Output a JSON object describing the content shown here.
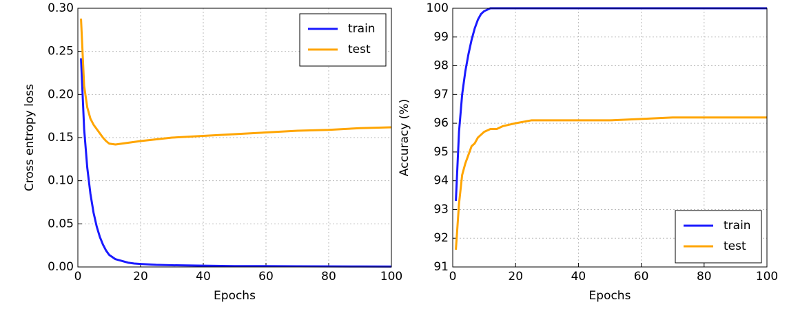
{
  "chart_data": [
    {
      "type": "line",
      "xlabel": "Epochs",
      "ylabel": "Cross entropy loss",
      "x": [
        1,
        2,
        3,
        4,
        5,
        6,
        7,
        8,
        9,
        10,
        12,
        14,
        16,
        18,
        20,
        25,
        30,
        40,
        50,
        60,
        70,
        80,
        90,
        100
      ],
      "series": [
        {
          "name": "train",
          "color": "#1a1aff",
          "values": [
            0.242,
            0.16,
            0.115,
            0.085,
            0.063,
            0.047,
            0.035,
            0.026,
            0.019,
            0.014,
            0.009,
            0.007,
            0.005,
            0.004,
            0.0035,
            0.0025,
            0.002,
            0.0015,
            0.001,
            0.001,
            0.0008,
            0.0007,
            0.0006,
            0.0005
          ]
        },
        {
          "name": "test",
          "color": "#ffa500",
          "values": [
            0.288,
            0.21,
            0.185,
            0.172,
            0.165,
            0.16,
            0.155,
            0.15,
            0.146,
            0.143,
            0.142,
            0.143,
            0.144,
            0.145,
            0.146,
            0.148,
            0.15,
            0.152,
            0.154,
            0.156,
            0.158,
            0.159,
            0.161,
            0.162
          ]
        }
      ],
      "xlim": [
        0,
        100
      ],
      "xticks": [
        0,
        20,
        40,
        60,
        80,
        100
      ],
      "ylim": [
        0,
        0.3
      ],
      "yticks": [
        {
          "value": 0,
          "label": "0.00"
        },
        0.05,
        {
          "value": 0.1,
          "label": "0.10"
        },
        0.15,
        {
          "value": 0.2,
          "label": "0.20"
        },
        0.25,
        {
          "value": 0.3,
          "label": "0.30"
        }
      ],
      "grid": true,
      "legend": "upper right"
    },
    {
      "type": "line",
      "xlabel": "Epochs",
      "ylabel": "Accuracy (%)",
      "x": [
        1,
        2,
        3,
        4,
        5,
        6,
        7,
        8,
        9,
        10,
        12,
        14,
        16,
        18,
        20,
        25,
        30,
        40,
        50,
        60,
        70,
        80,
        90,
        100
      ],
      "series": [
        {
          "name": "train",
          "color": "#1a1aff",
          "values": [
            93.3,
            95.7,
            97.0,
            97.8,
            98.4,
            98.9,
            99.3,
            99.6,
            99.8,
            99.9,
            100,
            100,
            100,
            100,
            100,
            100,
            100,
            100,
            100,
            100,
            100,
            100,
            100,
            100
          ]
        },
        {
          "name": "test",
          "color": "#ffa500",
          "values": [
            91.6,
            93.2,
            94.2,
            94.6,
            94.9,
            95.2,
            95.3,
            95.5,
            95.6,
            95.7,
            95.8,
            95.8,
            95.9,
            95.95,
            96.0,
            96.1,
            96.1,
            96.1,
            96.1,
            96.15,
            96.2,
            96.2,
            96.2,
            96.2
          ]
        }
      ],
      "xlim": [
        0,
        100
      ],
      "xticks": [
        0,
        20,
        40,
        60,
        80,
        100
      ],
      "ylim": [
        91,
        100
      ],
      "yticks": [
        91,
        92,
        93,
        94,
        95,
        96,
        97,
        98,
        99,
        100
      ],
      "grid": true,
      "legend": "lower right"
    }
  ]
}
